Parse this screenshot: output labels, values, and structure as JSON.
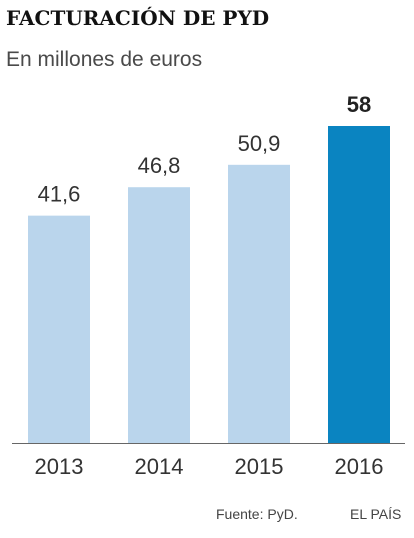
{
  "header": {
    "title": "FACTURACIÓN DE PYD",
    "subtitle": "En millones de euros"
  },
  "footer": {
    "source": "Fuente: PyD.",
    "brand": "EL PAÍS"
  },
  "colors": {
    "bar": "#bad5ec",
    "highlight": "#0a84c1",
    "axis": "#666666",
    "label": "#333333"
  },
  "chart_data": {
    "type": "bar",
    "title": "FACTURACIÓN DE PYD",
    "subtitle": "En millones de euros",
    "categories": [
      "2013",
      "2014",
      "2015",
      "2016"
    ],
    "values": [
      41.6,
      46.8,
      50.9,
      58
    ],
    "value_labels": [
      "41,6",
      "46,8",
      "50,9",
      "58"
    ],
    "highlight_index": 3,
    "ylim": [
      0,
      58
    ],
    "grid": false,
    "legend": "none"
  }
}
